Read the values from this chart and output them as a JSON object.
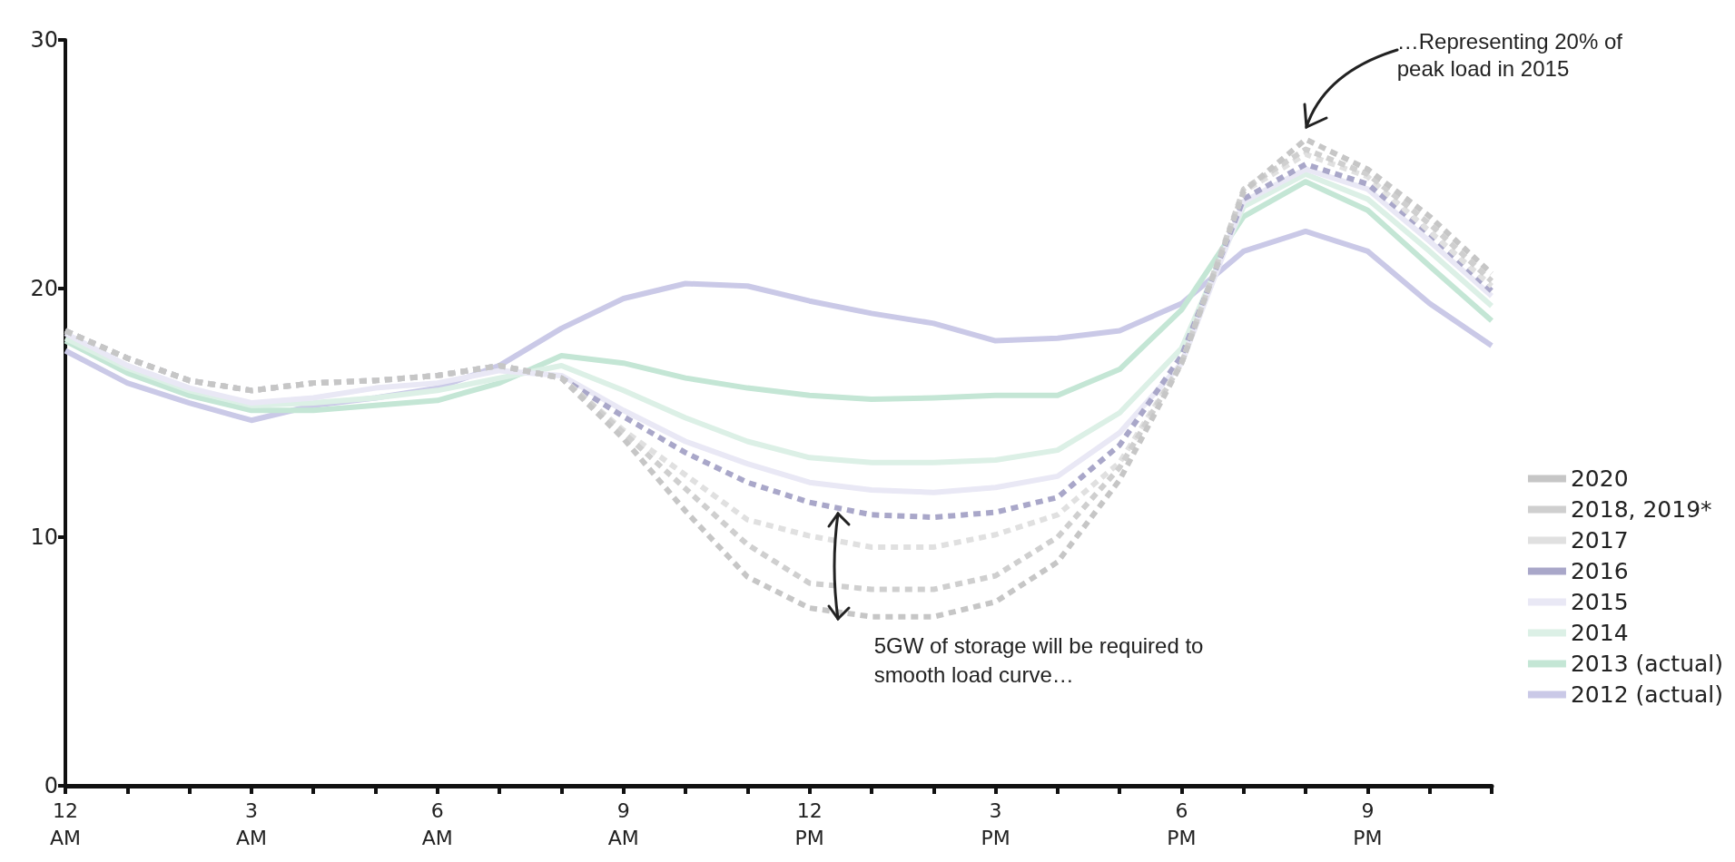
{
  "chart_data": {
    "type": "line",
    "categories": [
      "12\nAM",
      null,
      null,
      "3\nAM",
      null,
      null,
      "6\nAM",
      null,
      null,
      "9\nAM",
      null,
      null,
      "12\nPM",
      null,
      null,
      "3\nPM",
      null,
      null,
      "6\nPM",
      null,
      null,
      "9\nPM",
      null,
      null
    ],
    "ylim": [
      0,
      30
    ],
    "yticks": [
      0,
      10,
      20,
      30
    ],
    "grid": false,
    "legend": "right",
    "marker": "none",
    "series": [
      {
        "name": "2020",
        "color": "#c6c6c6",
        "line_style": "dashed",
        "values": [
          18.3,
          17.2,
          16.3,
          15.9,
          16.2,
          16.3,
          16.5,
          16.9,
          16.4,
          13.96,
          11.05,
          8.4,
          7.15,
          6.8,
          6.8,
          7.4,
          9.0,
          12.3,
          17.0,
          23.9,
          26.0,
          24.8,
          22.9,
          20.6
        ]
      },
      {
        "name": "2018, 2019*",
        "color": "#cfcfcf",
        "line_style": "dashed",
        "values": [
          18.3,
          17.2,
          16.3,
          15.9,
          16.2,
          16.3,
          16.5,
          16.9,
          16.4,
          14.2,
          11.95,
          9.7,
          8.15,
          7.9,
          7.9,
          8.45,
          10.0,
          12.8,
          17.0,
          24.0,
          25.6,
          24.6,
          22.6,
          20.3
        ]
      },
      {
        "name": "2017",
        "color": "#e0e0e0",
        "line_style": "dashed",
        "values": [
          18.3,
          17.2,
          16.3,
          15.9,
          16.2,
          16.3,
          16.5,
          16.9,
          16.4,
          14.3,
          12.5,
          10.7,
          10.05,
          9.6,
          9.6,
          10.1,
          10.9,
          13.0,
          17.0,
          23.9,
          25.4,
          24.5,
          22.3,
          20.1
        ]
      },
      {
        "name": "2016",
        "color": "#a9a7c9",
        "line_style": "dashed",
        "values": [
          18.3,
          17.2,
          16.3,
          15.9,
          16.2,
          16.3,
          16.5,
          16.9,
          16.4,
          14.85,
          13.4,
          12.2,
          11.4,
          10.9,
          10.8,
          11.0,
          11.6,
          13.7,
          17.3,
          23.6,
          25.0,
          24.2,
          22.2,
          19.9
        ]
      },
      {
        "name": "2015",
        "color": "#e9e8f5",
        "line_style": "solid",
        "values": [
          18.2,
          16.9,
          16.0,
          15.4,
          15.6,
          16.0,
          16.2,
          16.7,
          16.5,
          15.1,
          13.85,
          12.95,
          12.2,
          11.9,
          11.8,
          12.0,
          12.45,
          14.2,
          17.0,
          23.5,
          24.8,
          24.0,
          21.9,
          19.7
        ]
      },
      {
        "name": "2014",
        "color": "#dcf0e6",
        "line_style": "solid",
        "values": [
          18.0,
          16.8,
          15.9,
          15.3,
          15.4,
          15.6,
          15.9,
          16.4,
          16.9,
          15.9,
          14.8,
          13.85,
          13.2,
          13.0,
          13.0,
          13.1,
          13.5,
          15.0,
          17.6,
          23.3,
          24.6,
          23.6,
          21.5,
          19.3
        ]
      },
      {
        "name": "2013 (actual)",
        "color": "#c4e6d5",
        "line_style": "solid",
        "values": [
          17.9,
          16.6,
          15.7,
          15.1,
          15.1,
          15.3,
          15.5,
          16.2,
          17.3,
          17.0,
          16.4,
          16.0,
          15.7,
          15.55,
          15.6,
          15.7,
          15.7,
          16.75,
          19.15,
          22.9,
          24.3,
          23.15,
          20.9,
          18.7
        ]
      },
      {
        "name": "2012 (actual)",
        "color": "#cac9e7",
        "line_style": "solid",
        "values": [
          17.5,
          16.2,
          15.4,
          14.7,
          15.3,
          15.6,
          16.0,
          16.9,
          18.4,
          19.6,
          20.2,
          20.1,
          19.5,
          19.0,
          18.6,
          17.9,
          18.0,
          18.3,
          19.4,
          21.5,
          22.3,
          21.5,
          19.4,
          17.7
        ]
      }
    ],
    "annotations": [
      "…Representing 20% of\npeak load in 2015",
      "5GW of storage will be required to\nsmooth load curve…"
    ]
  }
}
